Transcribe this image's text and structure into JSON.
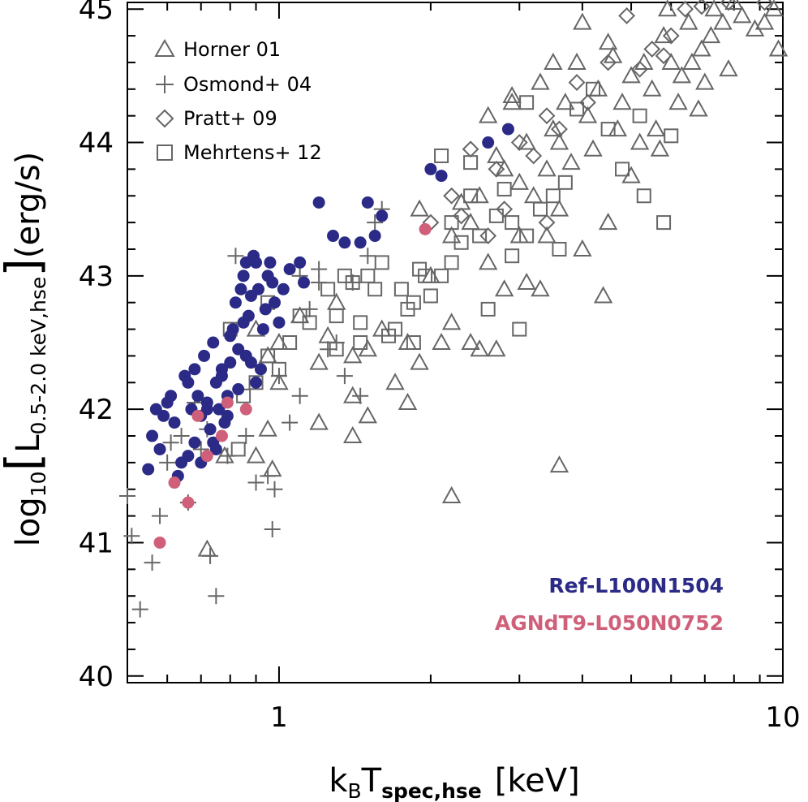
{
  "chart_data": {
    "type": "scatter",
    "xlabel": {
      "main": "k",
      "sub1": "B",
      "mid": "T",
      "sub2": "spec,hse",
      "unit": "[keV]"
    },
    "ylabel": {
      "prefix": "log",
      "sub": "10",
      "L": "L",
      "lsub": "0.5-2.0 keV,hse",
      "unit": "(erg/s)"
    },
    "x_scale": "log",
    "xlim": [
      0.5,
      10
    ],
    "ylim": [
      39.95,
      45.05
    ],
    "x_ticks": [
      {
        "value": 1,
        "label": "1"
      },
      {
        "value": 10,
        "label": "10"
      }
    ],
    "y_ticks": [
      {
        "value": 40,
        "label": "40"
      },
      {
        "value": 41,
        "label": "41"
      },
      {
        "value": 42,
        "label": "42"
      },
      {
        "value": 43,
        "label": "43"
      },
      {
        "value": 44,
        "label": "44"
      },
      {
        "value": 45,
        "label": "45"
      }
    ],
    "grid": false,
    "legend_position": "top-left",
    "colors": {
      "obs": "#666666",
      "ref": "#2b2a86",
      "agn": "#d0607a"
    },
    "series": [
      {
        "name": "Horner 01",
        "marker": "triangle",
        "points": [
          [
            9.6,
            45.0
          ],
          [
            9.2,
            44.9
          ],
          [
            8.8,
            44.85
          ],
          [
            8.3,
            44.95
          ],
          [
            7.6,
            44.9
          ],
          [
            7.3,
            45.0
          ],
          [
            7.2,
            44.8
          ],
          [
            6.9,
            44.7
          ],
          [
            6.5,
            44.9
          ],
          [
            6.6,
            44.6
          ],
          [
            6.3,
            44.5
          ],
          [
            6.0,
            44.6
          ],
          [
            5.8,
            44.8
          ],
          [
            5.5,
            44.4
          ],
          [
            5.3,
            44.6
          ],
          [
            5.0,
            44.5
          ],
          [
            4.8,
            44.3
          ],
          [
            4.6,
            44.65
          ],
          [
            4.3,
            44.4
          ],
          [
            4.1,
            44.2
          ],
          [
            3.9,
            44.6
          ],
          [
            3.7,
            44.3
          ],
          [
            3.5,
            44.1
          ],
          [
            3.3,
            44.45
          ],
          [
            3.1,
            44.0
          ],
          [
            3.0,
            43.7
          ],
          [
            2.9,
            44.3
          ],
          [
            2.7,
            43.9
          ],
          [
            2.6,
            44.2
          ],
          [
            9.8,
            44.7
          ],
          [
            7.8,
            44.55
          ],
          [
            7.0,
            44.45
          ],
          [
            6.2,
            44.3
          ],
          [
            5.6,
            44.1
          ],
          [
            5.2,
            44.0
          ],
          [
            4.7,
            44.1
          ],
          [
            4.2,
            43.95
          ],
          [
            3.8,
            43.85
          ],
          [
            3.6,
            44.0
          ],
          [
            3.4,
            43.8
          ],
          [
            3.2,
            43.6
          ],
          [
            2.8,
            43.8
          ],
          [
            2.5,
            43.6
          ],
          [
            2.4,
            43.4
          ],
          [
            3.0,
            43.3
          ],
          [
            3.4,
            43.3
          ],
          [
            3.6,
            43.5
          ],
          [
            4.0,
            43.2
          ],
          [
            4.5,
            43.4
          ],
          [
            5.0,
            43.75
          ],
          [
            5.7,
            43.95
          ],
          [
            6.8,
            44.25
          ],
          [
            2.3,
            43.55
          ],
          [
            2.2,
            43.3
          ],
          [
            2.6,
            43.1
          ],
          [
            2.8,
            42.9
          ],
          [
            3.1,
            42.95
          ],
          [
            3.3,
            42.9
          ],
          [
            4.4,
            42.85
          ],
          [
            2.0,
            43.0
          ],
          [
            2.1,
            42.5
          ],
          [
            2.2,
            42.65
          ],
          [
            2.4,
            42.5
          ],
          [
            2.5,
            42.45
          ],
          [
            2.7,
            42.45
          ],
          [
            1.8,
            42.5
          ],
          [
            1.9,
            42.35
          ],
          [
            1.6,
            42.6
          ],
          [
            1.5,
            42.45
          ],
          [
            1.4,
            42.4
          ],
          [
            1.3,
            42.8
          ],
          [
            1.25,
            42.55
          ],
          [
            1.2,
            42.35
          ],
          [
            1.1,
            42.7
          ],
          [
            1.0,
            42.5
          ],
          [
            0.95,
            42.4
          ],
          [
            0.9,
            42.6
          ],
          [
            1.4,
            42.1
          ],
          [
            1.5,
            41.95
          ],
          [
            1.7,
            42.2
          ],
          [
            1.8,
            42.05
          ],
          [
            1.0,
            42.2
          ],
          [
            0.95,
            41.85
          ],
          [
            1.2,
            41.9
          ],
          [
            1.4,
            41.8
          ],
          [
            0.9,
            41.65
          ],
          [
            0.97,
            41.55
          ],
          [
            0.78,
            41.65
          ],
          [
            0.72,
            40.95
          ],
          [
            2.2,
            41.35
          ],
          [
            3.6,
            41.58
          ],
          [
            1.9,
            43.5
          ],
          [
            2.9,
            44.35
          ],
          [
            3.5,
            44.6
          ],
          [
            4.0,
            44.9
          ],
          [
            4.5,
            44.75
          ],
          [
            5.9,
            45.0
          ],
          [
            8.0,
            45.05
          ]
        ]
      },
      {
        "name": "Osmond+ 04",
        "marker": "plus",
        "points": [
          [
            0.5,
            41.35
          ],
          [
            0.51,
            41.05
          ],
          [
            0.53,
            40.5
          ],
          [
            0.56,
            40.85
          ],
          [
            0.58,
            41.2
          ],
          [
            0.6,
            41.6
          ],
          [
            0.61,
            41.75
          ],
          [
            0.64,
            41.8
          ],
          [
            0.66,
            41.3
          ],
          [
            0.68,
            42.05
          ],
          [
            0.7,
            41.7
          ],
          [
            0.72,
            41.85
          ],
          [
            0.73,
            40.9
          ],
          [
            0.75,
            40.6
          ],
          [
            0.79,
            41.65
          ],
          [
            0.82,
            43.15
          ],
          [
            0.86,
            41.8
          ],
          [
            0.9,
            41.45
          ],
          [
            0.95,
            41.5
          ],
          [
            0.97,
            41.1
          ],
          [
            0.98,
            41.4
          ],
          [
            1.05,
            41.9
          ],
          [
            1.1,
            42.1
          ],
          [
            1.15,
            42.75
          ],
          [
            1.2,
            43.05
          ],
          [
            1.25,
            42.45
          ],
          [
            1.3,
            42.5
          ],
          [
            1.35,
            42.25
          ],
          [
            1.4,
            42.95
          ],
          [
            1.5,
            43.15
          ],
          [
            1.55,
            43.4
          ],
          [
            1.6,
            43.5
          ],
          [
            1.1,
            43.0
          ],
          [
            1.45,
            42.1
          ],
          [
            1.2,
            42.95
          ],
          [
            1.0,
            42.25
          ]
        ]
      },
      {
        "name": "Pratt+ 09",
        "marker": "diamond",
        "points": [
          [
            9.2,
            45.05
          ],
          [
            7.8,
            45.05
          ],
          [
            6.9,
            45.02
          ],
          [
            6.4,
            45.0
          ],
          [
            6.0,
            44.8
          ],
          [
            5.5,
            44.7
          ],
          [
            4.9,
            44.95
          ],
          [
            4.5,
            44.6
          ],
          [
            3.9,
            44.45
          ],
          [
            3.4,
            44.2
          ],
          [
            3.0,
            44.0
          ],
          [
            2.7,
            43.8
          ],
          [
            2.4,
            43.95
          ],
          [
            2.2,
            43.6
          ],
          [
            2.3,
            43.45
          ],
          [
            2.0,
            43.4
          ],
          [
            2.8,
            43.5
          ],
          [
            3.2,
            43.9
          ],
          [
            3.6,
            44.1
          ],
          [
            4.1,
            44.3
          ],
          [
            5.2,
            44.55
          ],
          [
            5.8,
            44.65
          ],
          [
            3.4,
            43.4
          ],
          [
            2.6,
            43.3
          ]
        ]
      },
      {
        "name": "Mehrtens+ 12",
        "marker": "square",
        "points": [
          [
            0.8,
            42.6
          ],
          [
            0.85,
            42.1
          ],
          [
            0.9,
            42.2
          ],
          [
            0.95,
            42.8
          ],
          [
            1.0,
            42.3
          ],
          [
            1.05,
            42.5
          ],
          [
            1.1,
            42.7
          ],
          [
            1.15,
            42.65
          ],
          [
            1.25,
            42.9
          ],
          [
            1.3,
            42.7
          ],
          [
            1.35,
            43.0
          ],
          [
            1.4,
            42.95
          ],
          [
            1.45,
            42.5
          ],
          [
            1.5,
            43.0
          ],
          [
            1.55,
            42.9
          ],
          [
            1.6,
            43.1
          ],
          [
            1.65,
            42.55
          ],
          [
            1.7,
            42.6
          ],
          [
            1.75,
            42.9
          ],
          [
            1.8,
            42.75
          ],
          [
            1.85,
            42.8
          ],
          [
            1.9,
            43.05
          ],
          [
            1.95,
            43.0
          ],
          [
            2.0,
            42.85
          ],
          [
            2.1,
            43.0
          ],
          [
            2.2,
            43.4
          ],
          [
            2.3,
            43.25
          ],
          [
            2.4,
            43.6
          ],
          [
            2.5,
            43.3
          ],
          [
            2.7,
            43.45
          ],
          [
            2.8,
            43.65
          ],
          [
            2.9,
            43.4
          ],
          [
            3.0,
            42.6
          ],
          [
            3.1,
            43.3
          ],
          [
            3.3,
            43.5
          ],
          [
            3.5,
            43.6
          ],
          [
            3.6,
            43.2
          ],
          [
            3.9,
            44.25
          ],
          [
            4.2,
            44.4
          ],
          [
            4.8,
            43.8
          ],
          [
            5.3,
            43.6
          ],
          [
            5.8,
            43.4
          ],
          [
            6.0,
            44.05
          ],
          [
            3.1,
            44.3
          ],
          [
            2.6,
            42.75
          ],
          [
            2.1,
            43.9
          ],
          [
            2.4,
            43.85
          ],
          [
            1.3,
            42.45
          ],
          [
            0.83,
            41.7
          ],
          [
            0.95,
            42.4
          ],
          [
            1.45,
            42.65
          ],
          [
            1.85,
            42.5
          ],
          [
            2.2,
            43.1
          ],
          [
            2.9,
            43.15
          ],
          [
            3.7,
            43.7
          ],
          [
            4.5,
            44.1
          ],
          [
            5.2,
            44.2
          ]
        ]
      },
      {
        "name": "Ref-L100N1504",
        "marker": "filled-circle",
        "points": [
          [
            0.55,
            41.55
          ],
          [
            0.56,
            41.8
          ],
          [
            0.57,
            42.0
          ],
          [
            0.58,
            41.7
          ],
          [
            0.6,
            42.05
          ],
          [
            0.62,
            41.9
          ],
          [
            0.63,
            41.5
          ],
          [
            0.64,
            41.6
          ],
          [
            0.66,
            42.2
          ],
          [
            0.67,
            42.0
          ],
          [
            0.68,
            42.3
          ],
          [
            0.69,
            42.1
          ],
          [
            0.7,
            41.6
          ],
          [
            0.71,
            42.4
          ],
          [
            0.72,
            42.0
          ],
          [
            0.73,
            41.85
          ],
          [
            0.74,
            42.5
          ],
          [
            0.75,
            42.2
          ],
          [
            0.76,
            42.0
          ],
          [
            0.77,
            42.3
          ],
          [
            0.78,
            41.9
          ],
          [
            0.79,
            42.1
          ],
          [
            0.8,
            42.35
          ],
          [
            0.81,
            42.6
          ],
          [
            0.82,
            42.8
          ],
          [
            0.83,
            42.45
          ],
          [
            0.84,
            42.9
          ],
          [
            0.85,
            43.0
          ],
          [
            0.86,
            43.1
          ],
          [
            0.87,
            42.7
          ],
          [
            0.88,
            42.85
          ],
          [
            0.89,
            43.15
          ],
          [
            0.9,
            43.1
          ],
          [
            0.91,
            42.9
          ],
          [
            0.92,
            42.3
          ],
          [
            0.93,
            42.6
          ],
          [
            0.94,
            42.75
          ],
          [
            0.95,
            43.0
          ],
          [
            0.96,
            43.1
          ],
          [
            0.97,
            42.95
          ],
          [
            0.98,
            42.8
          ],
          [
            1.0,
            42.65
          ],
          [
            1.02,
            42.9
          ],
          [
            1.05,
            43.05
          ],
          [
            1.1,
            43.1
          ],
          [
            1.12,
            42.95
          ],
          [
            1.2,
            43.55
          ],
          [
            1.28,
            43.3
          ],
          [
            1.35,
            43.25
          ],
          [
            1.45,
            43.25
          ],
          [
            1.5,
            43.55
          ],
          [
            1.55,
            43.3
          ],
          [
            1.6,
            43.45
          ],
          [
            2.0,
            43.8
          ],
          [
            2.1,
            43.75
          ],
          [
            2.6,
            44.0
          ],
          [
            2.85,
            44.1
          ],
          [
            0.74,
            41.75
          ],
          [
            0.77,
            42.25
          ],
          [
            0.79,
            41.95
          ],
          [
            0.83,
            42.15
          ],
          [
            0.86,
            42.4
          ],
          [
            0.9,
            42.2
          ],
          [
            0.72,
            42.05
          ],
          [
            0.7,
            41.95
          ],
          [
            0.68,
            41.75
          ],
          [
            0.66,
            41.65
          ],
          [
            0.65,
            42.25
          ],
          [
            0.61,
            42.1
          ],
          [
            0.59,
            41.95
          ],
          [
            0.75,
            41.7
          ],
          [
            0.8,
            42.55
          ],
          [
            0.85,
            42.65
          ],
          [
            0.88,
            42.35
          ]
        ]
      },
      {
        "name": "AGNdT9-L050N0752",
        "marker": "filled-circle",
        "points": [
          [
            0.58,
            41.0
          ],
          [
            0.62,
            41.45
          ],
          [
            0.66,
            41.3
          ],
          [
            0.69,
            41.95
          ],
          [
            0.72,
            41.65
          ],
          [
            0.77,
            41.8
          ],
          [
            0.79,
            42.05
          ],
          [
            0.86,
            42.0
          ],
          [
            1.95,
            43.35
          ]
        ]
      }
    ]
  }
}
